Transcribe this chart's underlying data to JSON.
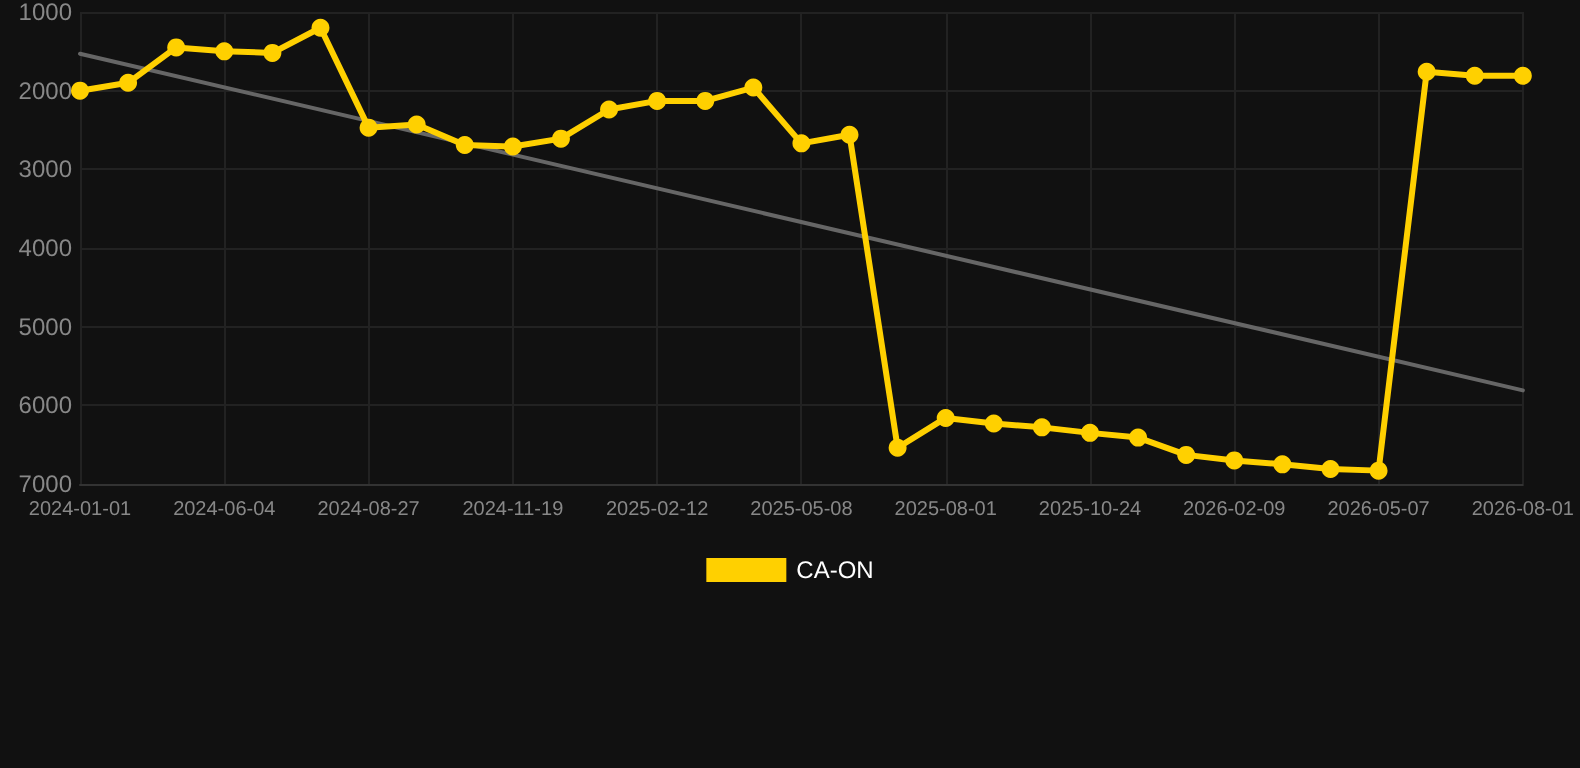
{
  "chart_data": {
    "type": "line",
    "categories": [
      "2024-01-01",
      null,
      null,
      "2024-06-04",
      null,
      null,
      "2024-08-27",
      null,
      null,
      "2024-11-19",
      null,
      null,
      "2025-02-12",
      null,
      null,
      "2025-05-08",
      null,
      null,
      "2025-08-01",
      null,
      null,
      "2025-10-24",
      null,
      null,
      "2026-02-09",
      null,
      null,
      "2026-05-07",
      null,
      null,
      "2026-08-01"
    ],
    "series": [
      {
        "name": "CA-ON",
        "color": "#ffd000",
        "values": [
          2000,
          1900,
          1450,
          1500,
          1520,
          1200,
          2470,
          2430,
          2690,
          2710,
          2610,
          2240,
          2130,
          2130,
          1960,
          2670,
          2560,
          6540,
          6160,
          6230,
          6280,
          6350,
          6410,
          6630,
          6700,
          6750,
          6810,
          6830,
          1760,
          1810,
          1810
        ]
      },
      {
        "type": "line",
        "color": "#666666",
        "marker": "none",
        "values": [
          1530,
          null,
          null,
          null,
          null,
          null,
          null,
          null,
          null,
          null,
          null,
          null,
          null,
          null,
          null,
          null,
          null,
          null,
          null,
          null,
          null,
          null,
          null,
          null,
          null,
          null,
          null,
          null,
          null,
          null,
          5810
        ]
      }
    ],
    "ylim": [
      7000,
      1000
    ],
    "yticks": [
      1000,
      2000,
      3000,
      4000,
      5000,
      6000,
      7000
    ],
    "grid": true,
    "legend": "bottom",
    "marker": "circle",
    "line_style": "solid"
  }
}
